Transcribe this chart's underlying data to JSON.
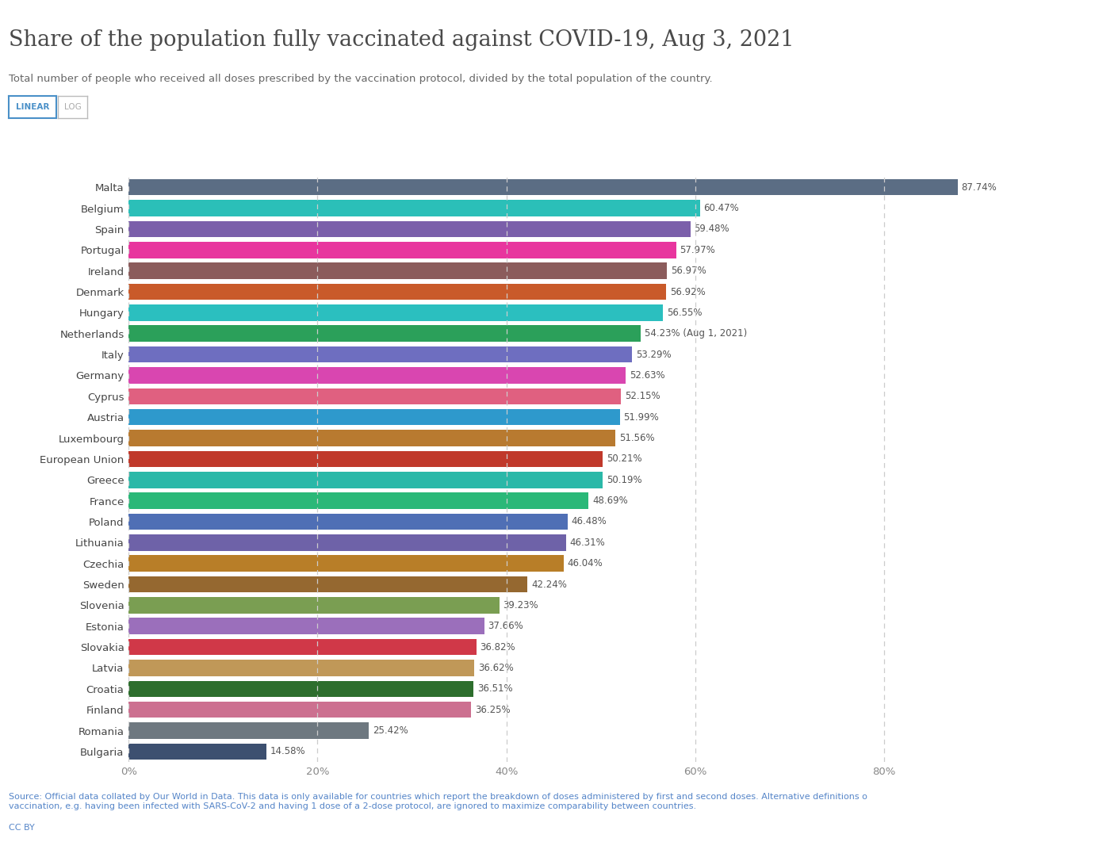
{
  "title": "Share of the population fully vaccinated against COVID-19, Aug 3, 2021",
  "subtitle": "Total number of people who received all doses prescribed by the vaccination protocol, divided by the total population of the country.",
  "countries": [
    "Malta",
    "Belgium",
    "Spain",
    "Portugal",
    "Ireland",
    "Denmark",
    "Hungary",
    "Netherlands",
    "Italy",
    "Germany",
    "Cyprus",
    "Austria",
    "Luxembourg",
    "European Union",
    "Greece",
    "France",
    "Poland",
    "Lithuania",
    "Czechia",
    "Sweden",
    "Slovenia",
    "Estonia",
    "Slovakia",
    "Latvia",
    "Croatia",
    "Finland",
    "Romania",
    "Bulgaria"
  ],
  "values": [
    87.74,
    60.47,
    59.48,
    57.97,
    56.97,
    56.92,
    56.55,
    54.23,
    53.29,
    52.63,
    52.15,
    51.99,
    51.56,
    50.21,
    50.19,
    48.69,
    46.48,
    46.31,
    46.04,
    42.24,
    39.23,
    37.66,
    36.82,
    36.62,
    36.51,
    36.25,
    25.42,
    14.58
  ],
  "colors": [
    "#5b6d84",
    "#2bbfb8",
    "#7b5faa",
    "#e8359e",
    "#8b5c5c",
    "#c95a2a",
    "#2bbfbf",
    "#2ba05a",
    "#6e6ec0",
    "#d946b0",
    "#e06080",
    "#2e99cc",
    "#b87a30",
    "#c0392b",
    "#2ab8a8",
    "#2ab878",
    "#4f6fb5",
    "#6e62a8",
    "#b87e28",
    "#956830",
    "#7a9e52",
    "#9b6fbb",
    "#d03848",
    "#c09858",
    "#2d6e2d",
    "#cc7090",
    "#6e7880",
    "#3d5070"
  ],
  "labels": [
    "87.74%",
    "60.47%",
    "59.48%",
    "57.97%",
    "56.97%",
    "56.92%",
    "56.55%",
    "54.23% (Aug 1, 2021)",
    "53.29%",
    "52.63%",
    "52.15%",
    "51.99%",
    "51.56%",
    "50.21%",
    "50.19%",
    "48.69%",
    "46.48%",
    "46.31%",
    "46.04%",
    "42.24%",
    "39.23%",
    "37.66%",
    "36.82%",
    "36.62%",
    "36.51%",
    "36.25%",
    "25.42%",
    "14.58%"
  ],
  "source_text": "Source: Official data collated by Our World in Data. This data is only available for countries which report the breakdown of doses administered by first and second doses. Alternative definitions o\nvaccination, e.g. having been infected with SARS-CoV-2 and having 1 dose of a 2-dose protocol, are ignored to maximize comparability between countries.",
  "cc_text": "CC BY",
  "title_color": "#4a4a4a",
  "subtitle_color": "#666666",
  "source_color": "#5585c8",
  "background_color": "#ffffff",
  "gridline_color": "#cccccc",
  "tick_color": "#888888",
  "bar_label_color": "#555555",
  "ytick_color": "#444444",
  "xlim": [
    0,
    100
  ],
  "xticks": [
    0,
    20,
    40,
    60,
    80
  ],
  "xticklabels": [
    "0%",
    "20%",
    "40%",
    "60%",
    "80%"
  ]
}
